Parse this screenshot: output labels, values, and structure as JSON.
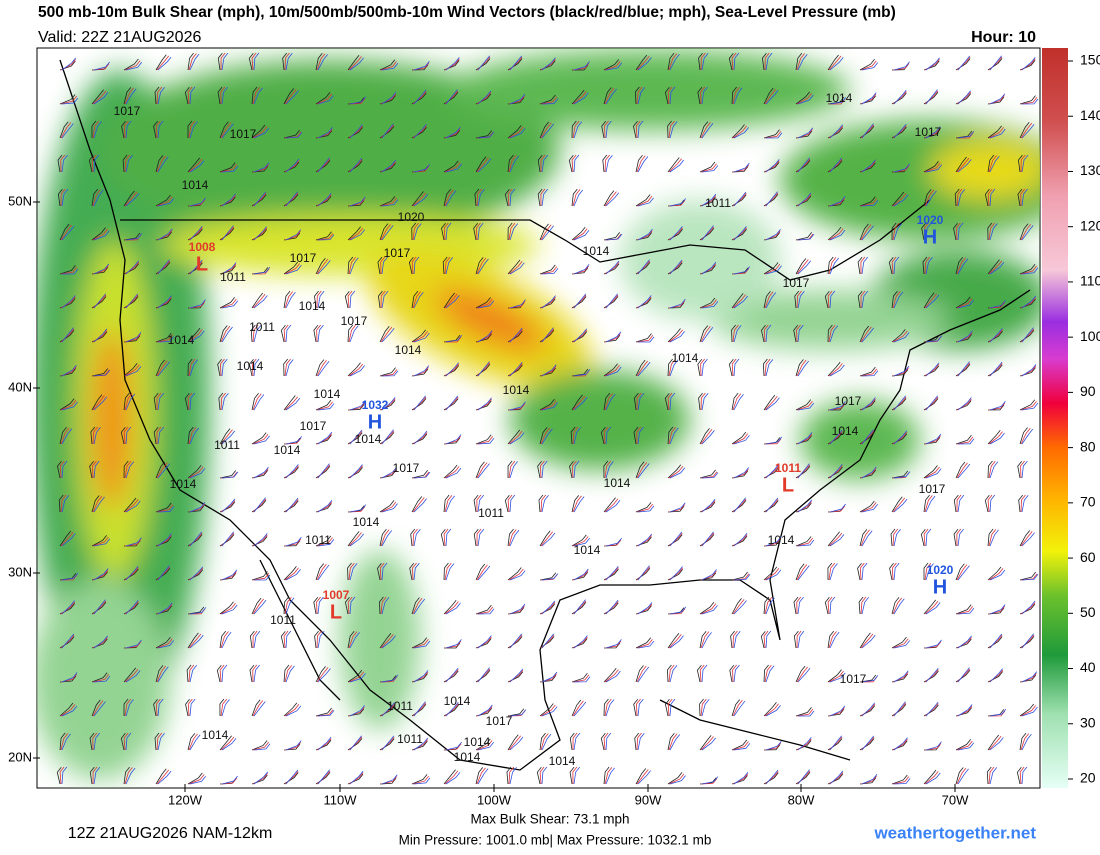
{
  "header": {
    "title": "500 mb-10m Bulk Shear (mph), 10m/500mb/500mb-10m Wind Vectors (black/red/blue; mph), Sea-Level Pressure (mb)",
    "valid": "Valid: 22Z 21AUG2026",
    "hour": "Hour: 10"
  },
  "colorbar": {
    "ticks": [
      150,
      140,
      130,
      120,
      110,
      100,
      90,
      80,
      70,
      60,
      50,
      40,
      30,
      20
    ]
  },
  "latitude_labels": [
    "50N",
    "40N",
    "30N",
    "20N"
  ],
  "longitude_labels": [
    "120W",
    "110W",
    "100W",
    "90W",
    "80W",
    "70W"
  ],
  "pressure_centers": [
    {
      "letter": "H",
      "pressure": "1032"
    },
    {
      "letter": "H",
      "pressure": "1020"
    },
    {
      "letter": "H",
      "pressure": "1020"
    },
    {
      "letter": "L",
      "pressure": "1008"
    },
    {
      "letter": "L",
      "pressure": "1011"
    },
    {
      "letter": "L",
      "pressure": "1007"
    }
  ],
  "isobar_labels": [
    "1017",
    "1017",
    "1014",
    "1020",
    "1017",
    "1017",
    "1011",
    "1014",
    "1017",
    "1011",
    "1014",
    "1014",
    "1014",
    "1014",
    "1017",
    "1014",
    "1011",
    "1014",
    "1017",
    "1014",
    "1014",
    "1011",
    "1011",
    "1014",
    "1014",
    "1014",
    "1014",
    "1011",
    "1014",
    "1017",
    "1017",
    "1014",
    "1017",
    "1014",
    "1017",
    "1011",
    "1014",
    "1011",
    "1014",
    "1017",
    "1011",
    "1014",
    "1014",
    "1014",
    "1014",
    "1017"
  ],
  "footer": {
    "run": "12Z 21AUG2026 NAM-12km",
    "max_shear": "Max Bulk Shear:  73.1 mph",
    "pressure_range": "Min Pressure: 1001.0 mb| Max Pressure: 1032.1 mb",
    "site": "weathertogether.net"
  }
}
